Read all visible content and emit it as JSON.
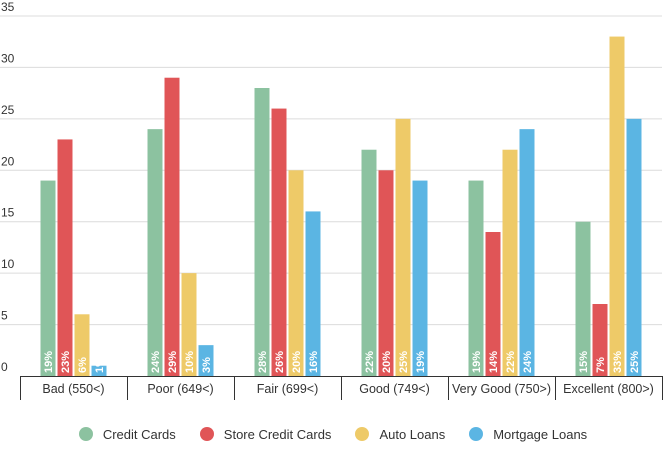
{
  "chart_data": {
    "type": "bar",
    "categories": [
      "Bad (550<)",
      "Poor (649<)",
      "Fair (699<)",
      "Good (749<)",
      "Very Good (750>)",
      "Excellent (800>)"
    ],
    "series": [
      {
        "name": "Credit Cards",
        "color": "#8cc2a0",
        "values": [
          19,
          24,
          28,
          22,
          19,
          15
        ],
        "labels": [
          "19%",
          "24%",
          "28%",
          "22%",
          "19%",
          "15%"
        ]
      },
      {
        "name": "Store Credit Cards",
        "color": "#e05557",
        "values": [
          23,
          29,
          26,
          20,
          14,
          7
        ],
        "labels": [
          "23%",
          "29%",
          "26%",
          "20%",
          "14%",
          "7%"
        ]
      },
      {
        "name": "Auto Loans",
        "color": "#eeca68",
        "values": [
          6,
          10,
          20,
          25,
          22,
          33
        ],
        "labels": [
          "6%",
          "10%",
          "20%",
          "25%",
          "22%",
          "33%"
        ]
      },
      {
        "name": "Mortgage Loans",
        "color": "#5bb5e3",
        "values": [
          1,
          3,
          16,
          19,
          24,
          25
        ],
        "labels": [
          "1%",
          "3%",
          "16%",
          "19%",
          "24%",
          "25%"
        ]
      }
    ],
    "yticks": [
      "0",
      "5",
      "10",
      "15",
      "20",
      "25",
      "30",
      "35"
    ],
    "ylim": [
      0,
      35
    ],
    "grid": true,
    "legend": "bottom"
  }
}
